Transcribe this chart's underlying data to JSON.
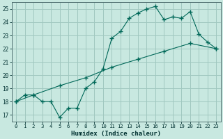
{
  "title": "",
  "xlabel": "Humidex (Indice chaleur)",
  "background_color": "#c8e8e0",
  "grid_color": "#a0c8c0",
  "line_color": "#006858",
  "xlim": [
    -0.5,
    23.5
  ],
  "ylim": [
    16.5,
    25.5
  ],
  "xticks": [
    0,
    1,
    2,
    3,
    4,
    5,
    6,
    7,
    8,
    9,
    10,
    11,
    12,
    13,
    14,
    15,
    16,
    17,
    18,
    19,
    20,
    21,
    22,
    23
  ],
  "yticks": [
    17,
    18,
    19,
    20,
    21,
    22,
    23,
    24,
    25
  ],
  "line1_x": [
    0,
    1,
    2,
    3,
    4,
    5,
    6,
    7,
    8,
    9,
    10,
    11,
    12,
    13,
    14,
    15,
    16,
    17,
    18,
    19,
    20,
    21,
    22,
    23
  ],
  "line1_y": [
    18.0,
    18.5,
    18.5,
    18.0,
    18.0,
    16.8,
    17.5,
    17.5,
    19.0,
    19.5,
    20.5,
    22.8,
    23.3,
    24.3,
    24.7,
    25.0,
    25.2,
    24.2,
    24.4,
    24.3,
    24.8,
    23.1,
    22.5,
    22.0
  ],
  "line2_x": [
    0,
    2,
    5,
    8,
    11,
    14,
    17,
    20,
    23
  ],
  "line2_y": [
    18.0,
    18.5,
    19.2,
    19.8,
    20.6,
    21.2,
    21.8,
    22.4,
    22.0
  ]
}
